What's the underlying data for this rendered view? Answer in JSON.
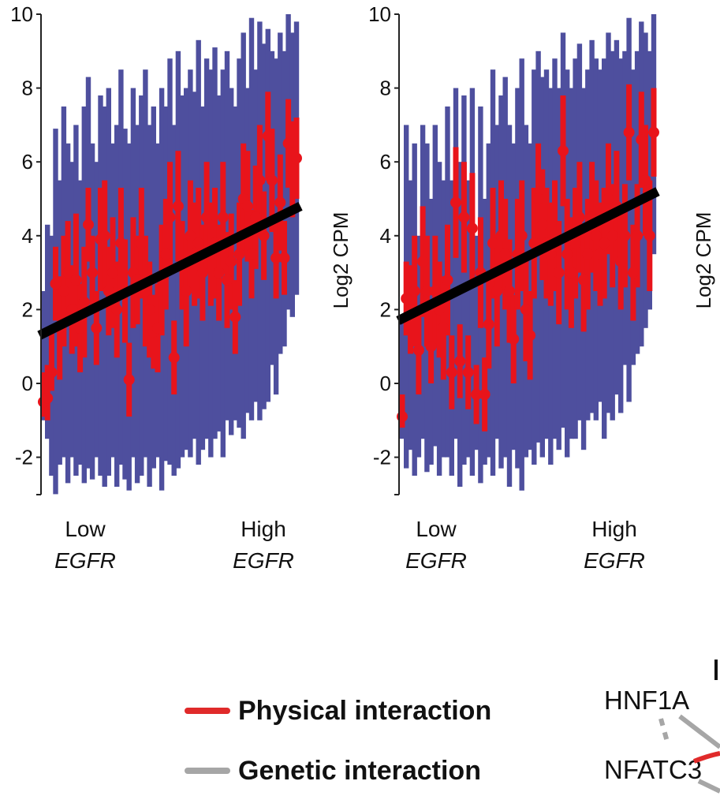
{
  "chart_data": [
    {
      "type": "scatter",
      "ylabel": "",
      "ylim": [
        -3,
        10
      ],
      "yticks": [
        -2,
        0,
        2,
        4,
        6,
        8,
        10
      ],
      "x_category_labels": [
        {
          "line1": "Low",
          "line2": "EGFR"
        },
        {
          "line1": "High",
          "line2": "EGFR"
        }
      ],
      "series": [
        {
          "values": [
            -0.5,
            -0.4,
            0.3,
            2.7,
            1.5,
            2.5,
            3.0,
            2.0,
            2.8,
            1.5,
            2.2,
            4.3,
            3.0,
            1.5,
            3.9,
            4.0,
            2.5,
            3.0,
            2.0,
            3.8,
            2.5,
            0.1,
            3.0,
            2.8,
            3.8,
            2.5,
            2.0,
            1.4,
            1.5,
            2.8,
            3.5,
            4.5,
            0.7,
            4.8,
            3.2,
            2.5,
            4.0,
            3.5,
            3.8,
            3.0,
            4.5,
            3.5,
            3.8,
            3.0,
            4.5,
            2.8,
            3.3,
            1.8,
            3.5,
            5.0,
            4.8,
            3.5,
            4.5,
            5.5,
            4.0,
            6.7,
            5.5,
            3.4,
            4.9,
            3.4,
            6.5,
            5.8,
            6.1
          ],
          "error_low": [
            0.4,
            0.6,
            0.5,
            1.0,
            1.4,
            1.5,
            1.4,
            1.2,
            1.8,
            1.2,
            1.5,
            1.0,
            1.0,
            1.0,
            1.4,
            1.5,
            1.2,
            1.5,
            1.3,
            1.5,
            1.4,
            1.0,
            1.5,
            1.2,
            1.5,
            1.5,
            1.3,
            1.0,
            1.2,
            1.5,
            1.5,
            1.5,
            1.0,
            1.5,
            1.2,
            1.5,
            1.5,
            1.4,
            1.5,
            1.3,
            1.5,
            1.4,
            1.5,
            1.3,
            1.5,
            1.3,
            1.3,
            1.0,
            1.4,
            1.5,
            1.5,
            1.2,
            1.4,
            1.5,
            1.2,
            1.2,
            1.4,
            1.1,
            1.3,
            1.0,
            1.2,
            1.3,
            1.1
          ],
          "error_high": [
            0.8,
            0.9,
            1.2,
            1.0,
            1.4,
            1.5,
            1.4,
            1.2,
            1.8,
            1.2,
            1.5,
            1.0,
            1.0,
            1.0,
            1.4,
            1.5,
            1.2,
            1.5,
            1.3,
            1.5,
            1.4,
            1.0,
            1.5,
            1.2,
            1.5,
            1.5,
            1.3,
            1.0,
            1.2,
            1.5,
            1.5,
            1.5,
            1.0,
            1.5,
            1.2,
            1.5,
            1.5,
            1.4,
            1.5,
            1.3,
            1.5,
            1.4,
            1.5,
            1.3,
            1.5,
            1.3,
            1.3,
            1.0,
            1.4,
            1.5,
            1.5,
            1.2,
            1.4,
            1.5,
            1.2,
            1.2,
            1.4,
            1.1,
            1.3,
            1.0,
            1.2,
            1.3,
            1.1
          ],
          "color": "#e8141b"
        },
        {
          "band_low": [
            -1.0,
            -1.5,
            -2.5,
            -3.0,
            -2.2,
            -2.0,
            -2.7,
            -2.0,
            -2.5,
            -2.2,
            -2.7,
            -2.3,
            -2.6,
            -2.0,
            -2.5,
            -2.8,
            -2.5,
            -2.0,
            -2.8,
            -2.2,
            -2.6,
            -2.9,
            -2.0,
            -2.7,
            -2.5,
            -2.0,
            -2.8,
            -2.3,
            -2.0,
            -2.9,
            -2.1,
            -2.2,
            -2.5,
            -2.3,
            -2.0,
            -1.8,
            -2.0,
            -1.5,
            -2.2,
            -1.8,
            -1.5,
            -2.0,
            -1.5,
            -1.3,
            -2.0,
            -1.0,
            -1.4,
            -1.0,
            -1.2,
            -1.5,
            -0.8,
            -1.0,
            -0.5,
            -1.0,
            -0.7,
            -0.5,
            0.5,
            -0.3,
            0.8,
            1.0,
            2.0,
            1.8,
            2.4
          ],
          "band_high": [
            2.5,
            4.3,
            4.0,
            6.9,
            5.5,
            7.5,
            6.5,
            6.0,
            7.0,
            5.5,
            7.5,
            8.3,
            6.5,
            6.0,
            7.8,
            7.5,
            8.0,
            6.5,
            7.0,
            8.5,
            6.9,
            6.5,
            8.0,
            7.0,
            7.8,
            8.5,
            7.0,
            7.5,
            6.5,
            8.0,
            7.5,
            8.8,
            7.0,
            9.0,
            7.8,
            8.0,
            8.5,
            7.9,
            9.3,
            7.5,
            8.8,
            8.5,
            9.1,
            7.8,
            8.5,
            9.0,
            8.0,
            7.5,
            8.8,
            9.5,
            8.0,
            9.9,
            8.5,
            9.8,
            9.2,
            9.6,
            9.0,
            8.8,
            9.5,
            9.0,
            10.0,
            9.5,
            9.8
          ],
          "color": "#4e4f9e"
        },
        {
          "type": "regression",
          "y_start": 1.3,
          "y_end": 4.8,
          "color": "#000000"
        }
      ]
    },
    {
      "type": "scatter",
      "ylabel": "Log2 CPM",
      "ylim": [
        -3,
        10
      ],
      "yticks": [
        -2,
        0,
        2,
        4,
        6,
        8,
        10
      ],
      "x_category_labels": [
        {
          "line1": "Low",
          "line2": "EGFR"
        },
        {
          "line1": "High",
          "line2": "EGFR"
        }
      ],
      "series": [
        {
          "values": [
            -0.9,
            2.3,
            2.0,
            2.5,
            0.9,
            3.3,
            2.5,
            1.0,
            2.5,
            2.0,
            1.5,
            2.8,
            0.3,
            4.9,
            0.6,
            4.5,
            0.3,
            4.2,
            -0.3,
            3.0,
            -0.3,
            1.6,
            3.8,
            2.5,
            4.0,
            3.5,
            2.5,
            1.2,
            3.5,
            4.0,
            2.0,
            1.3,
            3.8,
            5.0,
            4.3,
            3.8,
            3.5,
            4.0,
            3.0,
            6.3,
            3.5,
            3.0,
            3.8,
            4.5,
            2.8,
            3.5,
            4.5,
            4.0,
            3.5,
            3.8,
            5.0,
            4.0,
            4.8,
            3.3,
            4.0,
            6.8,
            3.0,
            4.0,
            6.6,
            5.5,
            4.0,
            6.8
          ],
          "error_low": [
            0.3,
            1.0,
            1.2,
            1.5,
            1.2,
            1.5,
            1.5,
            1.0,
            1.5,
            1.3,
            1.4,
            1.5,
            1.0,
            1.5,
            1.0,
            1.5,
            1.0,
            1.5,
            0.8,
            1.5,
            1.0,
            1.2,
            1.5,
            1.5,
            1.5,
            1.5,
            1.4,
            1.2,
            1.5,
            1.5,
            1.4,
            1.2,
            1.5,
            1.5,
            1.5,
            1.5,
            1.4,
            1.5,
            1.4,
            1.5,
            1.5,
            1.5,
            1.5,
            1.5,
            1.4,
            1.5,
            1.5,
            1.5,
            1.4,
            1.5,
            1.5,
            1.4,
            1.5,
            1.3,
            1.4,
            1.3,
            1.3,
            1.4,
            1.3,
            1.5,
            1.5,
            1.2
          ],
          "error_high": [
            0.6,
            1.0,
            1.2,
            1.5,
            1.2,
            1.5,
            1.5,
            1.0,
            1.5,
            1.3,
            1.4,
            1.5,
            1.0,
            1.5,
            1.0,
            1.5,
            1.0,
            1.5,
            0.8,
            1.5,
            1.0,
            1.2,
            1.5,
            1.5,
            1.5,
            1.5,
            1.4,
            1.2,
            1.5,
            1.5,
            1.4,
            1.2,
            1.5,
            1.5,
            1.5,
            1.5,
            1.4,
            1.5,
            1.4,
            1.5,
            1.5,
            1.5,
            1.5,
            1.5,
            1.4,
            1.5,
            1.5,
            1.5,
            1.4,
            1.5,
            1.5,
            1.4,
            1.5,
            1.3,
            1.4,
            1.3,
            1.3,
            1.4,
            1.3,
            1.5,
            1.5,
            1.2
          ],
          "color": "#e8141b"
        },
        {
          "band_low": [
            -1.5,
            -2.3,
            -1.8,
            -2.5,
            -2.0,
            -1.5,
            -2.4,
            -2.2,
            -1.7,
            -2.5,
            -2.0,
            -2.0,
            -2.5,
            -1.5,
            -2.8,
            -2.2,
            -2.0,
            -2.5,
            -1.8,
            -2.7,
            -2.2,
            -2.0,
            -2.5,
            -1.5,
            -2.3,
            -2.0,
            -2.8,
            -1.8,
            -2.3,
            -2.9,
            -2.0,
            -1.8,
            -2.2,
            -1.6,
            -2.0,
            -1.5,
            -2.2,
            -1.5,
            -1.8,
            -1.2,
            -2.0,
            -1.5,
            -1.5,
            -1.0,
            -1.8,
            -1.0,
            -0.8,
            -1.0,
            -0.5,
            -1.5,
            -0.8,
            -1.0,
            -0.3,
            -0.8,
            0.5,
            -0.5,
            0.5,
            0.8,
            1.0,
            1.5,
            2.0,
            3.5
          ],
          "band_high": [
            1.8,
            7.0,
            5.5,
            6.5,
            4.0,
            7.0,
            6.5,
            5.0,
            7.0,
            6.0,
            5.5,
            7.5,
            5.5,
            8.0,
            6.0,
            7.8,
            5.5,
            8.0,
            4.0,
            7.5,
            5.0,
            6.5,
            8.5,
            7.0,
            7.8,
            8.3,
            7.0,
            6.5,
            8.0,
            8.8,
            7.0,
            6.5,
            8.5,
            9.0,
            8.3,
            8.5,
            8.0,
            8.8,
            8.0,
            9.5,
            8.5,
            8.0,
            8.8,
            9.2,
            8.0,
            8.5,
            9.3,
            8.8,
            8.5,
            8.8,
            9.5,
            9.0,
            9.3,
            8.8,
            9.0,
            9.9,
            8.5,
            9.0,
            9.8,
            9.5,
            9.0,
            10.0
          ],
          "color": "#4e4f9e"
        },
        {
          "type": "regression",
          "y_start": 1.7,
          "y_end": 5.2,
          "color": "#000000"
        }
      ]
    }
  ],
  "third_panel": {
    "ylabel": "Log2 CPM"
  },
  "legend": {
    "items": [
      {
        "label": "Physical interaction",
        "color": "#e02a2a"
      },
      {
        "label": "Genetic interaction",
        "color": "#a6a6a6"
      }
    ]
  },
  "network": {
    "nodes": [
      "HNF1A",
      "NFATC3"
    ]
  }
}
